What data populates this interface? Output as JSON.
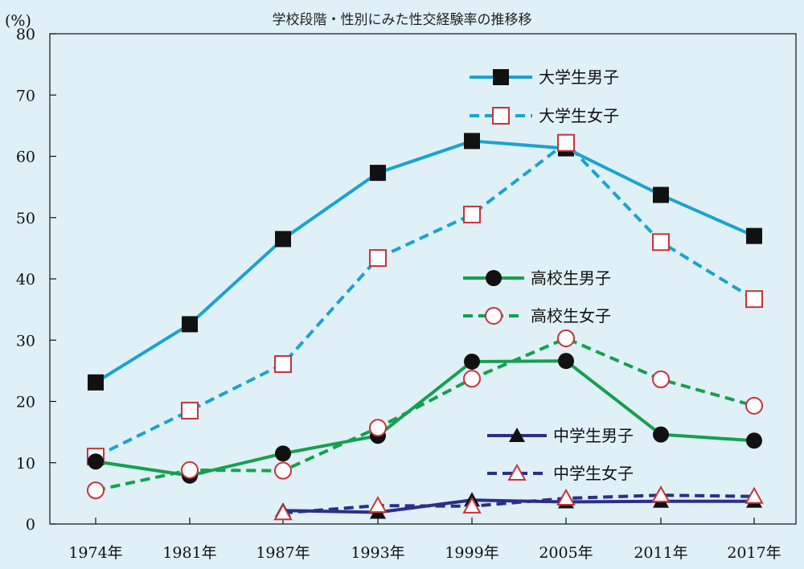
{
  "chart_data": {
    "type": "line",
    "title": "学校段階・性別にみた性交経験率の推移移",
    "ylabel": "(%)",
    "xlabel": "",
    "ylim": [
      0,
      80
    ],
    "yticks": [
      0,
      10,
      20,
      30,
      40,
      50,
      60,
      70,
      80
    ],
    "categories": [
      "1974年",
      "1981年",
      "1987年",
      "1993年",
      "1999年",
      "2005年",
      "2011年",
      "2017年"
    ],
    "grid": false,
    "legend_position": "inside-right",
    "series": [
      {
        "name": "大学生男子",
        "color": "#1aa3cf",
        "dash": "solid",
        "marker": "filled-square",
        "values": [
          23.1,
          32.6,
          46.5,
          57.3,
          62.5,
          61.3,
          53.7,
          47.0
        ]
      },
      {
        "name": "大学生女子",
        "color": "#1aa3cf",
        "dash": "dashed",
        "marker": "open-square",
        "values": [
          11.0,
          18.5,
          26.1,
          43.4,
          50.5,
          62.2,
          46.0,
          36.7
        ]
      },
      {
        "name": "高校生男子",
        "color": "#14a050",
        "dash": "solid",
        "marker": "filled-circle",
        "values": [
          10.2,
          7.9,
          11.5,
          14.4,
          26.5,
          26.6,
          14.6,
          13.6
        ]
      },
      {
        "name": "高校生女子",
        "color": "#14a050",
        "dash": "dashed",
        "marker": "open-circle",
        "values": [
          5.5,
          8.8,
          8.7,
          15.7,
          23.7,
          30.3,
          23.6,
          19.3
        ]
      },
      {
        "name": "中学生男子",
        "color": "#2b2f8a",
        "dash": "solid",
        "marker": "filled-triangle",
        "values": [
          null,
          null,
          2.2,
          1.9,
          3.9,
          3.6,
          3.7,
          3.7
        ]
      },
      {
        "name": "中学生女子",
        "color": "#2b2f8a",
        "dash": "dashed",
        "marker": "open-triangle",
        "values": [
          null,
          null,
          1.8,
          3.0,
          2.9,
          4.2,
          4.7,
          4.5
        ]
      }
    ]
  }
}
